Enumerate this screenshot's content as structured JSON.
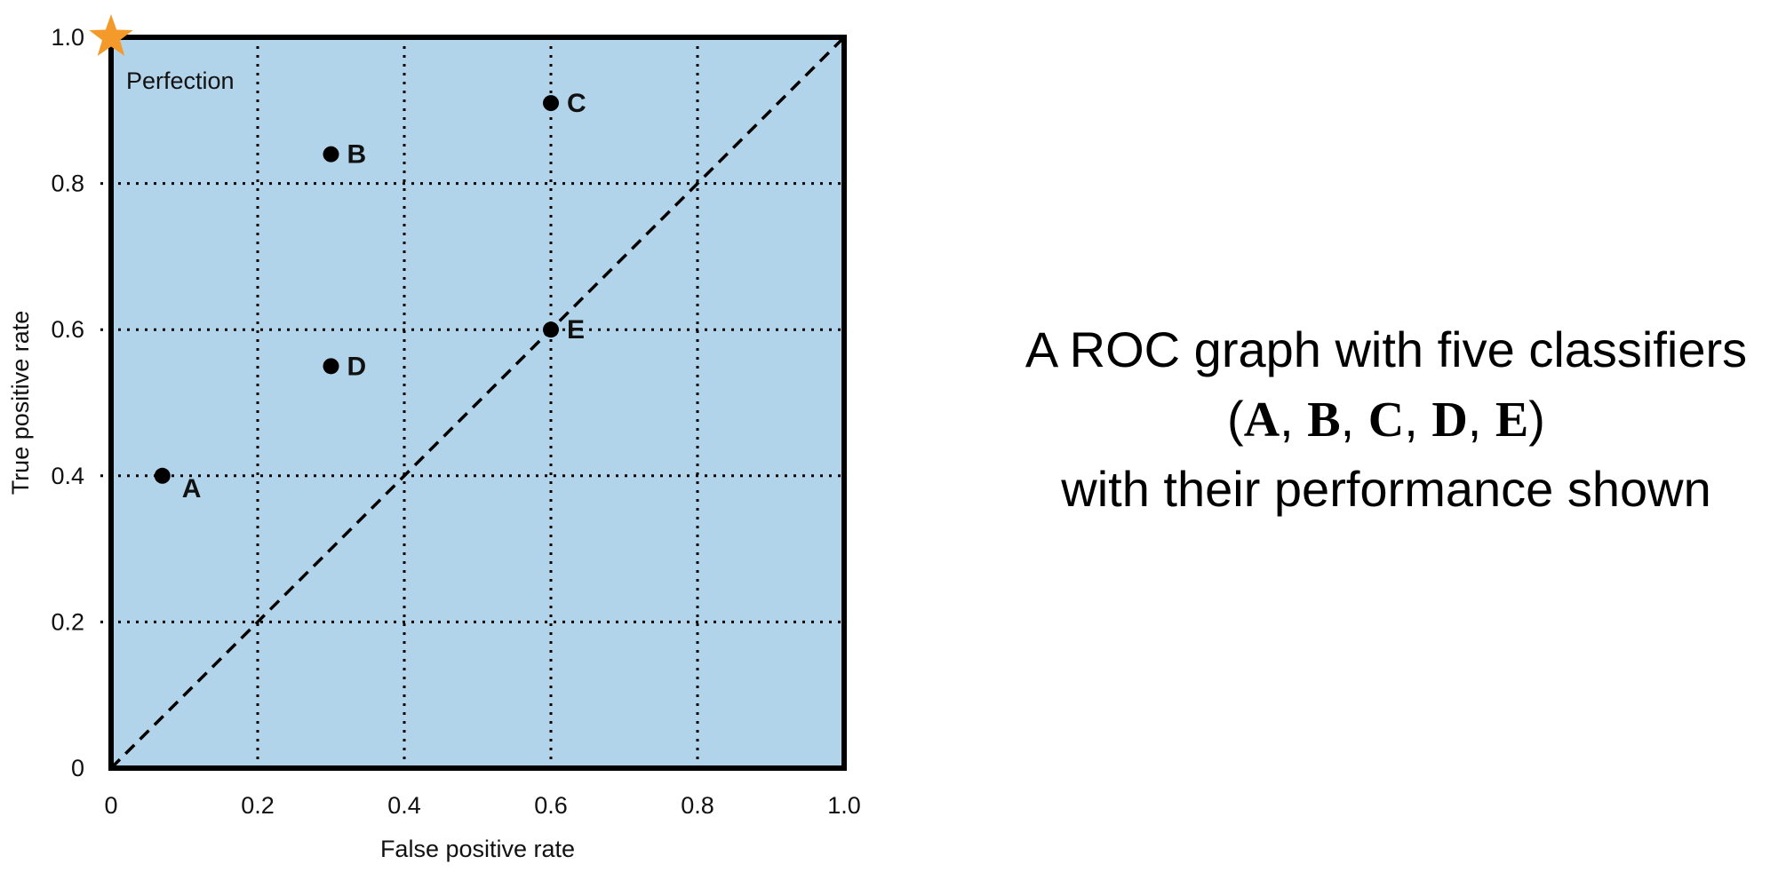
{
  "chart_data": {
    "type": "scatter",
    "xlabel": "False positive rate",
    "ylabel": "True positive rate",
    "xlim": [
      0,
      1.0
    ],
    "ylim": [
      0,
      1.0
    ],
    "x_ticks": [
      "0",
      "0.2",
      "0.4",
      "0.6",
      "0.8",
      "1.0"
    ],
    "y_ticks": [
      "0",
      "0.2",
      "0.4",
      "0.6",
      "0.8",
      "1.0"
    ],
    "grid": true,
    "background_color": "#b2d4ea",
    "points": [
      {
        "label": "A",
        "x": 0.07,
        "y": 0.4
      },
      {
        "label": "B",
        "x": 0.3,
        "y": 0.84
      },
      {
        "label": "C",
        "x": 0.6,
        "y": 0.91
      },
      {
        "label": "D",
        "x": 0.3,
        "y": 0.55
      },
      {
        "label": "E",
        "x": 0.6,
        "y": 0.6
      }
    ],
    "diagonal": {
      "from": [
        0,
        0
      ],
      "to": [
        1,
        1
      ],
      "style": "dashed"
    },
    "annotations": [
      {
        "text": "Perfection",
        "x": 0,
        "y": 1.0,
        "marker": "star",
        "color": "#f39a2b"
      }
    ]
  },
  "caption": {
    "line1": "A ROC graph with five classifiers",
    "open_paren": "(",
    "classifiers": [
      "A",
      "B",
      "C",
      "D",
      "E"
    ],
    "separator": ", ",
    "close_paren": ")",
    "line3": "with their performance shown"
  }
}
